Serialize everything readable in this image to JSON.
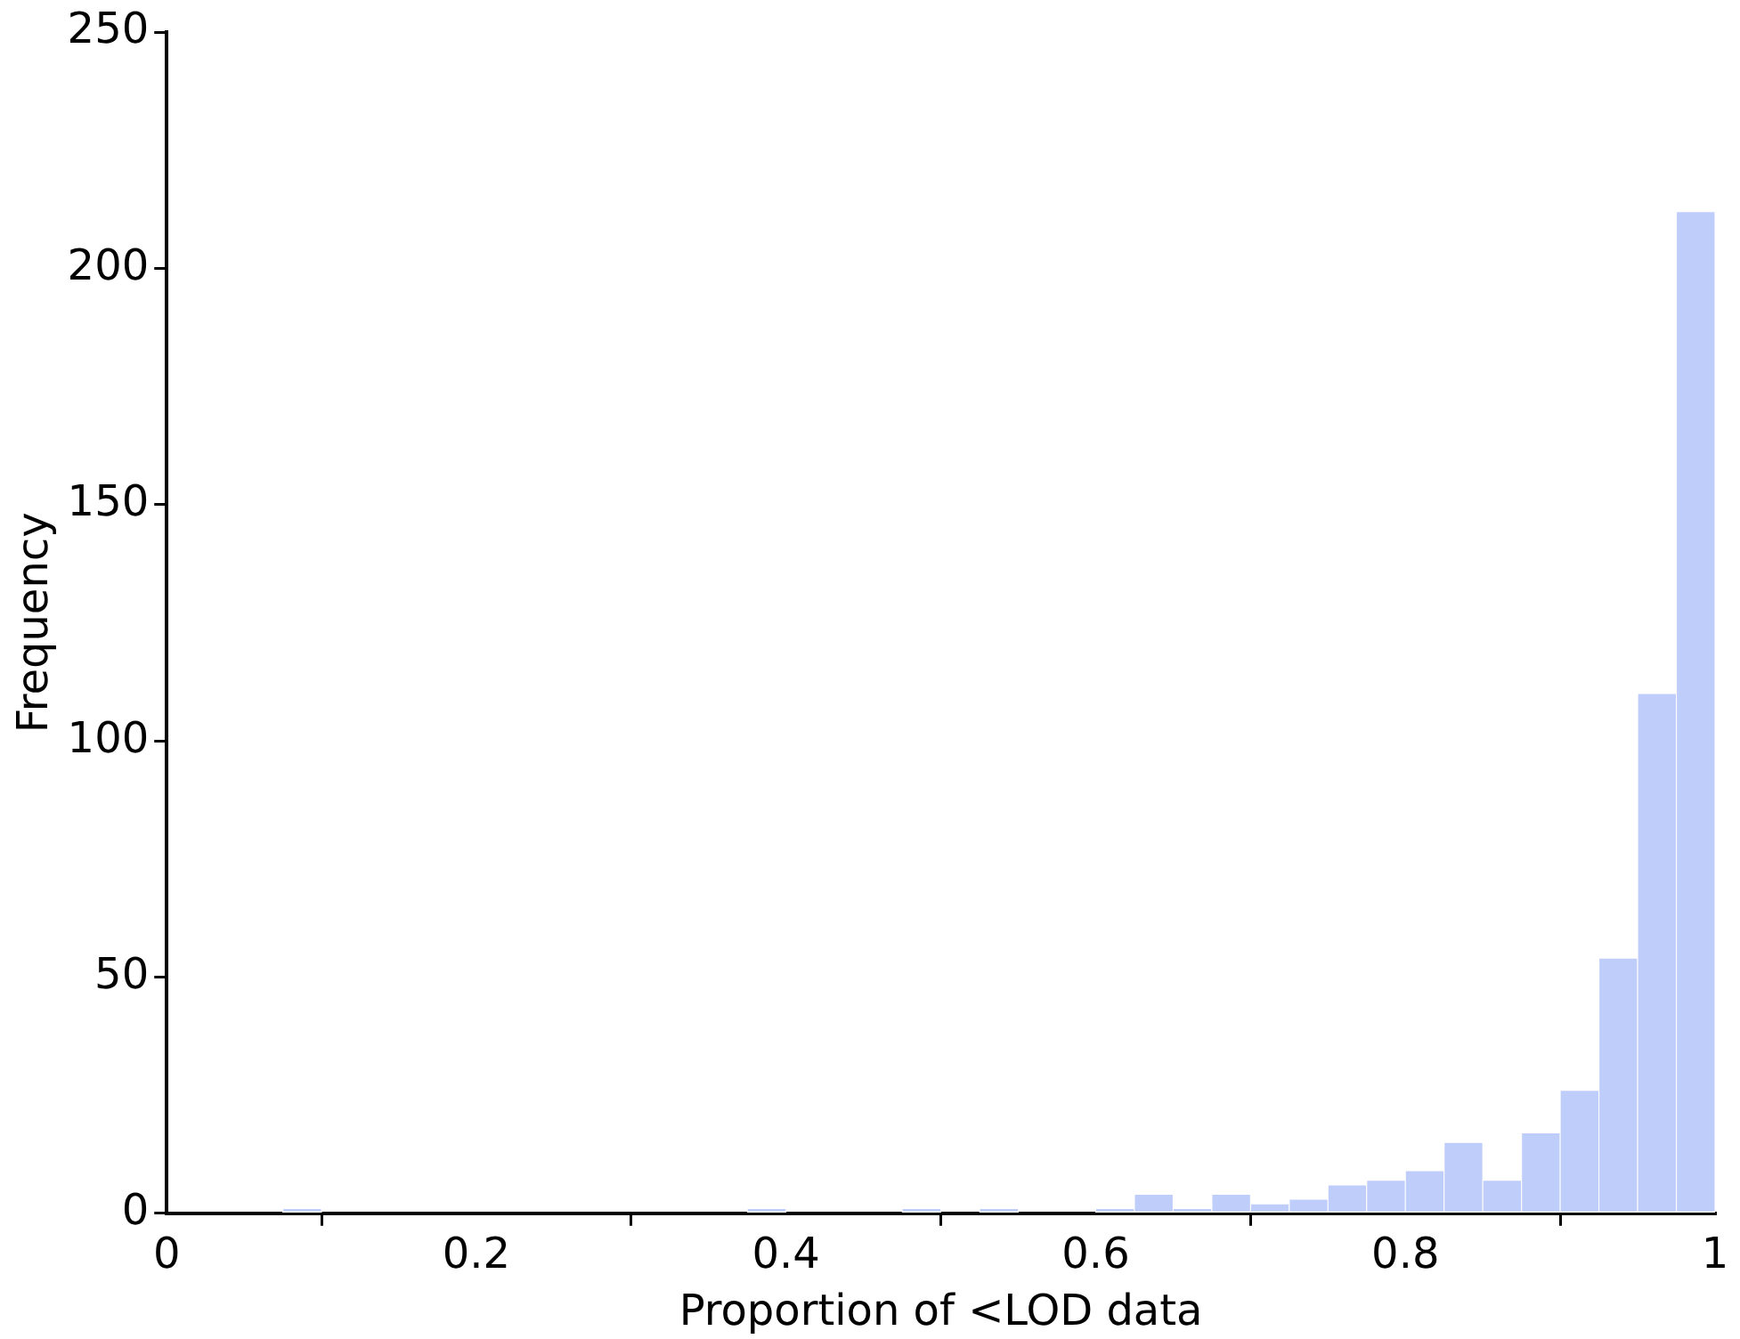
{
  "chart_data": {
    "type": "histogram",
    "xlabel": "Proportion of <LOD data",
    "ylabel": "Frequency",
    "bins": [
      0,
      0.025,
      0.05,
      0.075,
      0.1,
      0.125,
      0.15,
      0.175,
      0.2,
      0.225,
      0.25,
      0.275,
      0.3,
      0.325,
      0.35,
      0.375,
      0.4,
      0.425,
      0.45,
      0.475,
      0.5,
      0.525,
      0.55,
      0.575,
      0.6,
      0.625,
      0.65,
      0.675,
      0.7,
      0.725,
      0.75,
      0.775,
      0.8,
      0.825,
      0.85,
      0.875,
      0.9,
      0.925,
      0.95,
      0.975,
      1
    ],
    "values": [
      0,
      0,
      0,
      1,
      0,
      0,
      0,
      0,
      0,
      0,
      0,
      0,
      0,
      0,
      0,
      1,
      0,
      0,
      0,
      1,
      0,
      1,
      0,
      0,
      1,
      4,
      1,
      4,
      2,
      3,
      6,
      7,
      9,
      15,
      7,
      17,
      26,
      54,
      110,
      212
    ],
    "color": "#bfcdfb",
    "xlim": [
      0,
      1
    ],
    "xticks": [
      0,
      0.2,
      0.4,
      0.6,
      0.8,
      1
    ],
    "ylim": [
      0,
      250
    ],
    "yticks": [
      0,
      50,
      100,
      150,
      200,
      250
    ],
    "grid": false,
    "legend": false
  }
}
